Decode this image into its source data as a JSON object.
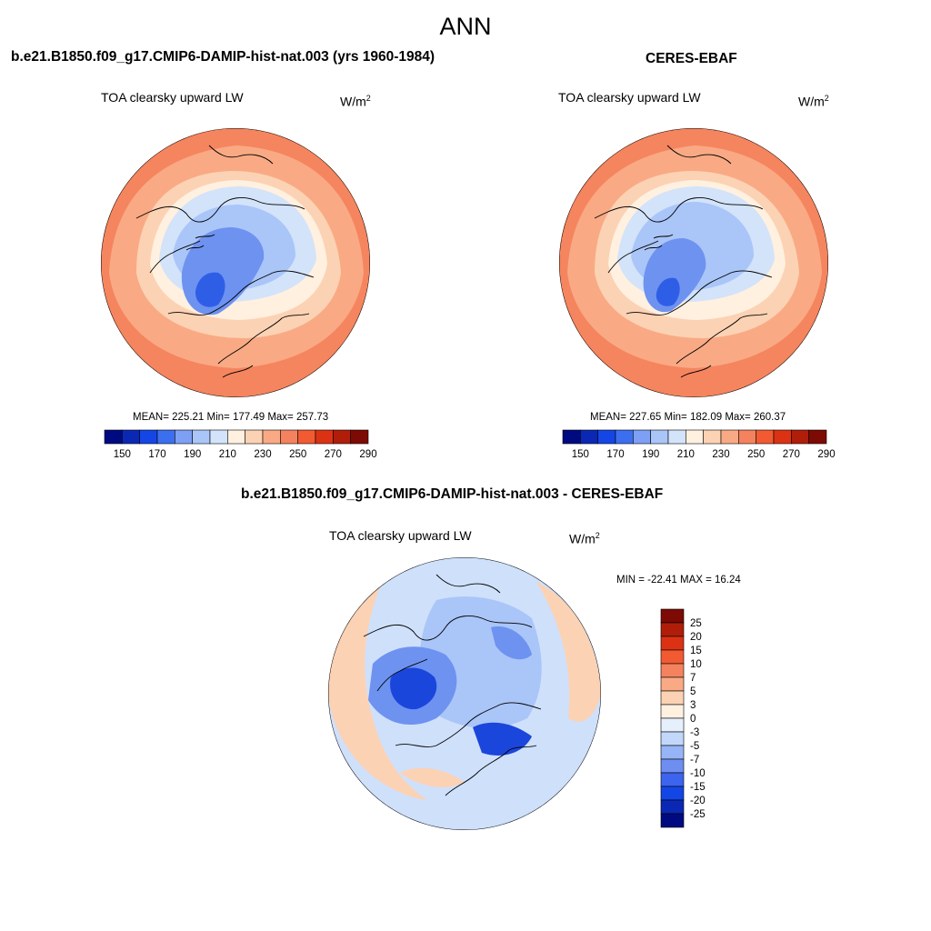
{
  "page": {
    "title": "ANN"
  },
  "panels": [
    {
      "id": "model",
      "heading": "b.e21.B1850.f09_g17.CMIP6-DAMIP-hist-nat.003 (yrs 1960-1984)",
      "variable": "TOA clearsky upward LW",
      "units_base": "W/m",
      "units_exp": "2",
      "stats": "MEAN= 225.21  Min= 177.49  Max= 257.73"
    },
    {
      "id": "obs",
      "heading": "CERES-EBAF",
      "variable": "TOA clearsky upward LW",
      "units_base": "W/m",
      "units_exp": "2",
      "stats": "MEAN= 227.65  Min= 182.09  Max= 260.37"
    },
    {
      "id": "diff",
      "heading": "b.e21.B1850.f09_g17.CMIP6-DAMIP-hist-nat.003 - CERES-EBAF",
      "variable": "TOA clearsky upward LW",
      "units_base": "W/m",
      "units_exp": "2",
      "stats": "MIN = -22.41 MAX =  16.24"
    }
  ],
  "colorbars": {
    "absolute": {
      "tick_labels": [
        "150",
        "170",
        "190",
        "210",
        "230",
        "250",
        "270",
        "290"
      ],
      "colors": [
        "#000a80",
        "#0a28b4",
        "#1446e6",
        "#3c6ef0",
        "#7ea0f4",
        "#aac5f8",
        "#d2e3fa",
        "#fff0e0",
        "#fcd2b4",
        "#f9aa84",
        "#f5825f",
        "#f25a32",
        "#dc3214",
        "#b01e0a",
        "#7d0a04"
      ]
    },
    "difference": {
      "tick_labels": [
        "25",
        "20",
        "15",
        "10",
        "7",
        "5",
        "3",
        "0",
        "-3",
        "-5",
        "-7",
        "-10",
        "-15",
        "-20",
        "-25"
      ],
      "colors": [
        "#7d0a04",
        "#b01e0a",
        "#dc3214",
        "#f25a32",
        "#f5825f",
        "#f9aa84",
        "#fcd2b4",
        "#fff0e0",
        "#e6f0fc",
        "#c2d7fa",
        "#96b4f6",
        "#6e8ef2",
        "#3c64ee",
        "#1446e6",
        "#0a28b4",
        "#000a80"
      ]
    }
  },
  "fill_colors": {
    "warm_outer": "#f5855f",
    "warm_mid": "#f9aa84",
    "warm_light": "#fcd2b4",
    "cream": "#fff0e0",
    "cold_light": "#d2e3fa",
    "cold_mid": "#aac5f8",
    "cold_blue": "#6e92f0",
    "cold_deep": "#2f5ee6",
    "diff_base": "#cfe0fb",
    "diff_pos": "#fcd2b4",
    "diff_neg_deep": "#1b46dc",
    "coast": "#000000"
  }
}
